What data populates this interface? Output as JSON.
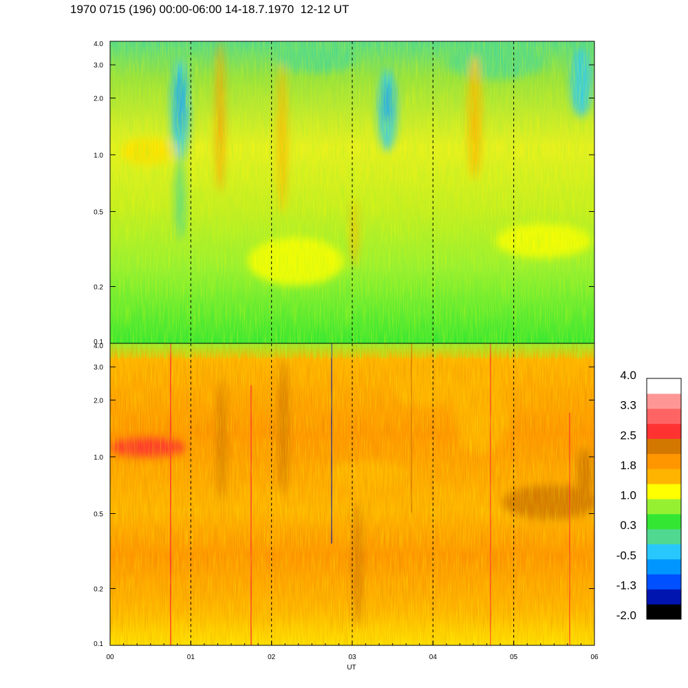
{
  "title": "1970 0715 (196) 00:00-06:00 14-18.7.1970  12-12 UT",
  "chart_data": [
    {
      "type": "heatmap",
      "panel": "upper",
      "x_range": [
        0,
        6
      ],
      "y_scale": "log",
      "y_range": [
        0.1,
        4.0
      ],
      "yticks": [
        {
          "v": 0.1,
          "label": "0.1"
        },
        {
          "v": 0.2,
          "label": "0.2"
        },
        {
          "v": 0.5,
          "label": "0.5"
        },
        {
          "v": 1.0,
          "label": "1.0"
        },
        {
          "v": 2.0,
          "label": "2.0"
        },
        {
          "v": 3.0,
          "label": "3.0"
        },
        {
          "v": 4.0,
          "label": "4.0"
        }
      ],
      "hour_markers": [
        1,
        2,
        3,
        4,
        5
      ]
    },
    {
      "type": "heatmap",
      "panel": "lower",
      "x_range": [
        0,
        6
      ],
      "y_scale": "log",
      "y_range": [
        0.1,
        4.0
      ],
      "yticks": [
        {
          "v": 0.1,
          "label": "0.1"
        },
        {
          "v": 0.2,
          "label": "0.2"
        },
        {
          "v": 0.5,
          "label": "0.5"
        },
        {
          "v": 1.0,
          "label": "1.0"
        },
        {
          "v": 2.0,
          "label": "2.0"
        },
        {
          "v": 3.0,
          "label": "3.0"
        },
        {
          "v": 4.0,
          "label": "4.0"
        }
      ],
      "xticks": [
        {
          "v": 0,
          "label": "00"
        },
        {
          "v": 1,
          "label": "01"
        },
        {
          "v": 2,
          "label": "02"
        },
        {
          "v": 3,
          "label": "03"
        },
        {
          "v": 4,
          "label": "04"
        },
        {
          "v": 5,
          "label": "05"
        },
        {
          "v": 6,
          "label": "06"
        }
      ],
      "xlabel": "UT",
      "hour_markers": [
        1,
        2,
        3,
        4,
        5
      ]
    }
  ],
  "colorbar": {
    "colors_bottom_to_top": [
      "#000000",
      "#0014b0",
      "#0050ff",
      "#0096ff",
      "#28c8ff",
      "#50d890",
      "#32e632",
      "#96f032",
      "#ffff00",
      "#ffb400",
      "#ff9600",
      "#d27800",
      "#ff3232",
      "#ff6464",
      "#ff9696",
      "#ffffff"
    ],
    "labels": [
      "4.0",
      "3.3",
      "2.5",
      "1.8",
      "1.0",
      "0.3",
      "-0.5",
      "-1.3",
      "-2.0"
    ]
  }
}
